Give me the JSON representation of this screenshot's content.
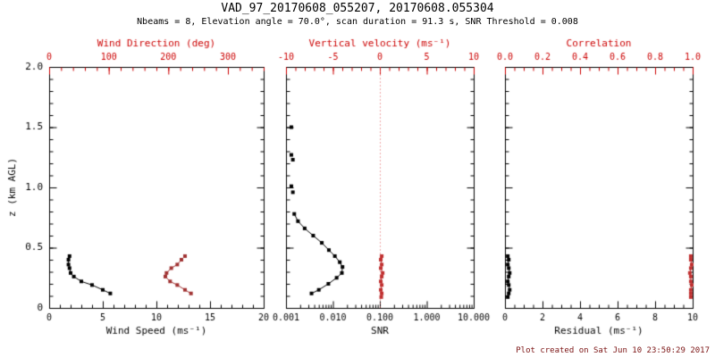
{
  "titles": {
    "line1": "VAD_97_20170608_055207, 20170608.055304",
    "line2": "Nbeams = 8, Elevation angle = 70.0°, scan duration = 91.3 s, SNR Threshold = 0.008"
  },
  "footer": "Plot created on Sat Jun 10 23:50:29 2017",
  "colors": {
    "axis": "#000000",
    "top_axis": "#cc0000",
    "zero_line": "#dd5555",
    "background": "#ffffff"
  },
  "y_axis": {
    "label": "z (km AGL)",
    "range": [
      0,
      2
    ],
    "ticks": [
      0,
      0.5,
      1,
      1.5,
      2
    ],
    "tick_labels": [
      "0",
      "0.5",
      "1.0",
      "1.5",
      "2.0"
    ],
    "minor_step": 0.1
  },
  "chart_data": [
    {
      "type": "scatter",
      "title": "wind-speed-direction-profile",
      "bottom_axis": {
        "label": "Wind Speed (ms⁻¹)",
        "scale": "linear",
        "range": [
          0,
          20
        ],
        "ticks": [
          0,
          5,
          10,
          15,
          20
        ],
        "tick_labels": [
          "0",
          "5",
          "10",
          "15",
          "20"
        ],
        "minor_step": 1
      },
      "top_axis": {
        "label": "Wind Direction (deg)",
        "scale": "linear",
        "range": [
          0,
          360
        ],
        "ticks": [
          0,
          100,
          200,
          300
        ],
        "tick_labels": [
          "0",
          "100",
          "200",
          "300"
        ],
        "minor_step": 20
      },
      "series": [
        {
          "name": "wind-speed",
          "axis": "bottom",
          "color": "#000000",
          "line": true,
          "marker": "square",
          "points": [
            [
              1.9,
              0.43
            ],
            [
              1.8,
              0.4
            ],
            [
              1.8,
              0.36
            ],
            [
              1.9,
              0.33
            ],
            [
              2.0,
              0.29
            ],
            [
              2.3,
              0.26
            ],
            [
              3.0,
              0.22
            ],
            [
              4.0,
              0.19
            ],
            [
              5.0,
              0.15
            ],
            [
              5.7,
              0.12
            ]
          ]
        },
        {
          "name": "wind-direction",
          "axis": "top",
          "color": "#a03232",
          "line": true,
          "marker": "square",
          "points": [
            [
              228,
              0.43
            ],
            [
              222,
              0.4
            ],
            [
              215,
              0.36
            ],
            [
              205,
              0.33
            ],
            [
              197,
              0.29
            ],
            [
              195,
              0.26
            ],
            [
              203,
              0.22
            ],
            [
              215,
              0.19
            ],
            [
              228,
              0.15
            ],
            [
              238,
              0.12
            ]
          ]
        }
      ]
    },
    {
      "type": "scatter",
      "title": "snr-vertical-velocity-profile",
      "bottom_axis": {
        "label": "SNR",
        "scale": "log",
        "range": [
          0.001,
          10
        ],
        "ticks": [
          0.001,
          0.01,
          0.1,
          1,
          10
        ],
        "tick_labels": [
          "0.001",
          "0.010",
          "0.100",
          "1.000",
          "10.000"
        ]
      },
      "top_axis": {
        "label": "Vertical velocity (ms⁻¹)",
        "scale": "linear",
        "range": [
          -10,
          10
        ],
        "ticks": [
          -10,
          -5,
          0,
          5,
          10
        ],
        "tick_labels": [
          "-10",
          "-5",
          "0",
          "5",
          "10"
        ],
        "minor_step": 1,
        "zero_line": true
      },
      "series": [
        {
          "name": "snr-upper",
          "axis": "bottom",
          "color": "#000000",
          "line": false,
          "marker": "square",
          "points": [
            [
              0.0013,
              1.5
            ],
            [
              0.0013,
              1.27
            ],
            [
              0.0014,
              1.23
            ],
            [
              0.0013,
              1.01
            ],
            [
              0.0014,
              0.96
            ]
          ]
        },
        {
          "name": "snr-profile",
          "axis": "bottom",
          "color": "#000000",
          "line": true,
          "marker": "square",
          "points": [
            [
              0.0015,
              0.78
            ],
            [
              0.0018,
              0.72
            ],
            [
              0.0025,
              0.66
            ],
            [
              0.0038,
              0.6
            ],
            [
              0.0058,
              0.54
            ],
            [
              0.0082,
              0.48
            ],
            [
              0.011,
              0.43
            ],
            [
              0.014,
              0.38
            ],
            [
              0.016,
              0.34
            ],
            [
              0.0155,
              0.29
            ],
            [
              0.012,
              0.25
            ],
            [
              0.008,
              0.2
            ],
            [
              0.005,
              0.15
            ],
            [
              0.0035,
              0.12
            ]
          ]
        },
        {
          "name": "vertical-velocity",
          "axis": "top",
          "color": "#c03030",
          "line": true,
          "marker": "square",
          "points": [
            [
              0.2,
              0.43
            ],
            [
              0.1,
              0.4
            ],
            [
              0.2,
              0.36
            ],
            [
              0.1,
              0.33
            ],
            [
              0.3,
              0.29
            ],
            [
              0.2,
              0.26
            ],
            [
              0.1,
              0.22
            ],
            [
              0.2,
              0.19
            ],
            [
              0.1,
              0.15
            ],
            [
              0.2,
              0.12
            ],
            [
              0.15,
              0.09
            ]
          ]
        }
      ]
    },
    {
      "type": "scatter",
      "title": "residual-correlation-profile",
      "bottom_axis": {
        "label": "Residual (ms⁻¹)",
        "scale": "linear",
        "range": [
          0,
          10
        ],
        "ticks": [
          0,
          2,
          4,
          6,
          8,
          10
        ],
        "tick_labels": [
          "0",
          "2",
          "4",
          "6",
          "8",
          "10"
        ],
        "minor_step": 0.5
      },
      "top_axis": {
        "label": "Correlation",
        "scale": "linear",
        "range": [
          0,
          1
        ],
        "ticks": [
          0,
          0.2,
          0.4,
          0.6,
          0.8,
          1
        ],
        "tick_labels": [
          "0.0",
          "0.2",
          "0.4",
          "0.6",
          "0.8",
          "1.0"
        ],
        "minor_step": 0.05
      },
      "series": [
        {
          "name": "residual",
          "axis": "bottom",
          "color": "#000000",
          "line": true,
          "marker": "square",
          "points": [
            [
              0.15,
              0.43
            ],
            [
              0.2,
              0.4
            ],
            [
              0.15,
              0.36
            ],
            [
              0.2,
              0.33
            ],
            [
              0.25,
              0.29
            ],
            [
              0.2,
              0.26
            ],
            [
              0.15,
              0.22
            ],
            [
              0.2,
              0.19
            ],
            [
              0.25,
              0.15
            ],
            [
              0.2,
              0.12
            ],
            [
              0.15,
              0.09
            ]
          ]
        },
        {
          "name": "correlation",
          "axis": "top",
          "color": "#c03030",
          "line": true,
          "marker": "square",
          "points": [
            [
              0.99,
              0.43
            ],
            [
              0.99,
              0.4
            ],
            [
              0.995,
              0.36
            ],
            [
              0.99,
              0.33
            ],
            [
              0.985,
              0.29
            ],
            [
              0.99,
              0.26
            ],
            [
              0.99,
              0.22
            ],
            [
              0.995,
              0.19
            ],
            [
              0.99,
              0.15
            ],
            [
              0.99,
              0.12
            ],
            [
              0.99,
              0.09
            ]
          ]
        }
      ]
    }
  ]
}
